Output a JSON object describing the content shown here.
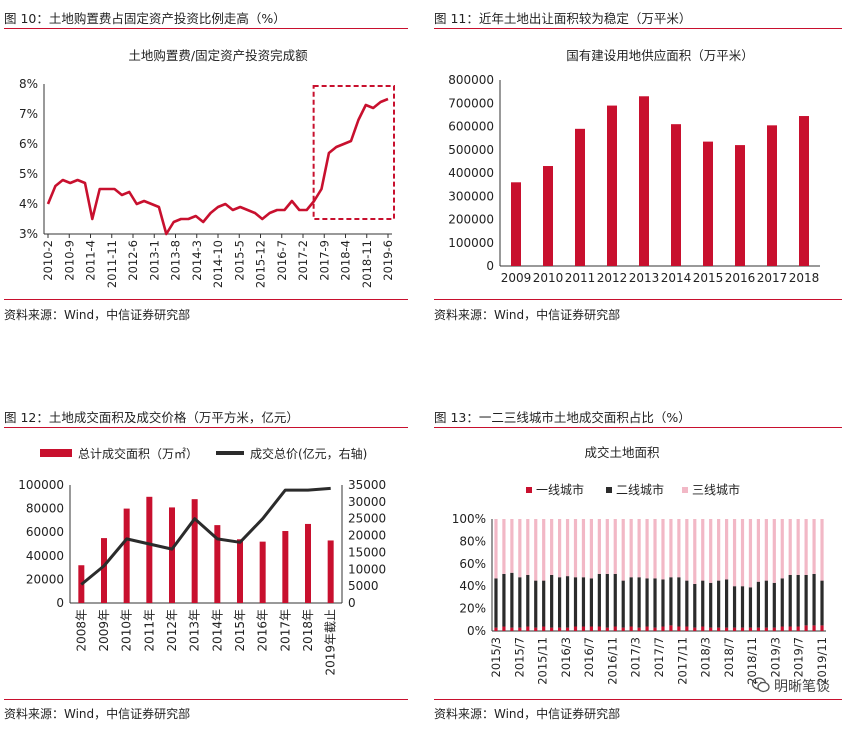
{
  "colors": {
    "red": "#c8102e",
    "dark": "#2b2b2b",
    "pink": "#f2b8c6",
    "rule": "#c8102e"
  },
  "panels": [
    {
      "fig_title": "图 10：土地购置费占固定资产投资比例走高（%）",
      "source": "资料来源：Wind，中信证券研究部"
    },
    {
      "fig_title": "图 11：近年土地出让面积较为稳定（万平米）",
      "source": "资料来源：Wind，中信证券研究部"
    },
    {
      "fig_title": "图 12：土地成交面积及成交价格（万平方米，亿元）",
      "source": "资料来源：Wind，中信证券研究部"
    },
    {
      "fig_title": "图 13：一二三线城市土地成交面积占比（%）",
      "source": "资料来源：Wind，中信证券研究部"
    }
  ],
  "watermark": "明晰笔谈",
  "watermark_icon": "wechat-icon",
  "chart_data": [
    {
      "type": "line",
      "title": "土地购置费/固定资产投资完成额",
      "ylim": [
        3,
        8
      ],
      "yticks": [
        "3%",
        "4%",
        "5%",
        "6%",
        "7%",
        "8%"
      ],
      "xtick_labels": [
        "2010-2",
        "2010-9",
        "2011-4",
        "2011-11",
        "2012-6",
        "2013-1",
        "2013-8",
        "2014-3",
        "2014-10",
        "2015-5",
        "2015-12",
        "2016-7",
        "2017-2",
        "2017-9",
        "2018-4",
        "2018-11",
        "2019-6"
      ],
      "annotation": "highlight-box-2017-9-to-2019-6",
      "series": [
        {
          "values": [
            4.0,
            4.6,
            4.8,
            4.7,
            4.8,
            4.7,
            3.5,
            4.5,
            4.5,
            4.5,
            4.3,
            4.4,
            4.0,
            4.1,
            4.0,
            3.9,
            3.0,
            3.4,
            3.5,
            3.5,
            3.6,
            3.4,
            3.7,
            3.9,
            4.0,
            3.8,
            3.9,
            3.8,
            3.7,
            3.5,
            3.7,
            3.8,
            3.8,
            4.1,
            3.8,
            3.8,
            4.1,
            4.5,
            5.7,
            5.9,
            6.0,
            6.1,
            6.8,
            7.3,
            7.2,
            7.4,
            7.5
          ]
        }
      ]
    },
    {
      "type": "bar",
      "title": "国有建设用地供应面积（万平米）",
      "categories": [
        "2009",
        "2010",
        "2011",
        "2012",
        "2013",
        "2014",
        "2015",
        "2016",
        "2017",
        "2018"
      ],
      "values": [
        360000,
        430000,
        590000,
        690000,
        730000,
        610000,
        535000,
        520000,
        605000,
        645000
      ],
      "ylim": [
        0,
        800000
      ],
      "yticks": [
        "0",
        "100000",
        "200000",
        "300000",
        "400000",
        "500000",
        "600000",
        "700000",
        "800000"
      ]
    },
    {
      "type": "bar",
      "categories": [
        "2008年",
        "2009年",
        "2010年",
        "2011年",
        "2012年",
        "2013年",
        "2014年",
        "2015年",
        "2016年",
        "2017年",
        "2018年",
        "2019年截止"
      ],
      "legend": [
        "总计成交面积（万㎡）",
        "成交总价(亿元，右轴)"
      ],
      "series": [
        {
          "name": "总计成交面积（万㎡）",
          "values": [
            32000,
            55000,
            80000,
            90000,
            81000,
            88000,
            66000,
            54000,
            52000,
            61000,
            67000,
            53000
          ]
        },
        {
          "name": "成交总价(亿元，右轴)",
          "values": [
            5500,
            11000,
            19000,
            17500,
            16000,
            25000,
            19000,
            18000,
            25000,
            33500,
            33500,
            34000
          ]
        }
      ],
      "ylim_left": [
        0,
        100000
      ],
      "ylim_right": [
        0,
        35000
      ],
      "yticks_left": [
        "0",
        "20000",
        "40000",
        "60000",
        "80000",
        "100000"
      ],
      "yticks_right": [
        "0",
        "5000",
        "10000",
        "15000",
        "20000",
        "25000",
        "30000",
        "35000"
      ]
    },
    {
      "type": "bar",
      "stacked": true,
      "title": "成交土地面积",
      "legend": [
        "一线城市",
        "二线城市",
        "三线城市"
      ],
      "xtick_labels": [
        "2015/3",
        "2015/7",
        "2015/11",
        "2016/3",
        "2016/7",
        "2016/11",
        "2017/3",
        "2017/7",
        "2017/11",
        "2018/3",
        "2018/7",
        "2018/11",
        "2019/3",
        "2019/7",
        "2019/11"
      ],
      "series": [
        {
          "name": "一线城市",
          "values": [
            3,
            4,
            3,
            3,
            4,
            3,
            4,
            3,
            3,
            3,
            4,
            4,
            4,
            4,
            3,
            4,
            3,
            4,
            3,
            4,
            3,
            4,
            5,
            4,
            4,
            3,
            4,
            3,
            3,
            3,
            3,
            3,
            3,
            3,
            3,
            3,
            4,
            4,
            4,
            5,
            5,
            5
          ]
        },
        {
          "name": "二线城市",
          "values": [
            44,
            47,
            49,
            45,
            46,
            42,
            41,
            47,
            45,
            46,
            44,
            44,
            43,
            47,
            48,
            47,
            42,
            44,
            45,
            43,
            44,
            42,
            43,
            44,
            41,
            39,
            41,
            40,
            42,
            43,
            37,
            37,
            36,
            41,
            42,
            40,
            43,
            46,
            46,
            45,
            46,
            40
          ]
        },
        {
          "name": "三线城市",
          "values": [
            53,
            49,
            48,
            52,
            50,
            55,
            55,
            50,
            52,
            51,
            52,
            52,
            53,
            49,
            49,
            49,
            55,
            52,
            52,
            53,
            53,
            54,
            52,
            52,
            55,
            58,
            55,
            57,
            55,
            54,
            60,
            60,
            61,
            56,
            55,
            57,
            53,
            50,
            50,
            50,
            49,
            55
          ]
        }
      ],
      "ylim": [
        0,
        100
      ],
      "yticks": [
        "0%",
        "20%",
        "40%",
        "60%",
        "80%",
        "100%"
      ]
    }
  ]
}
